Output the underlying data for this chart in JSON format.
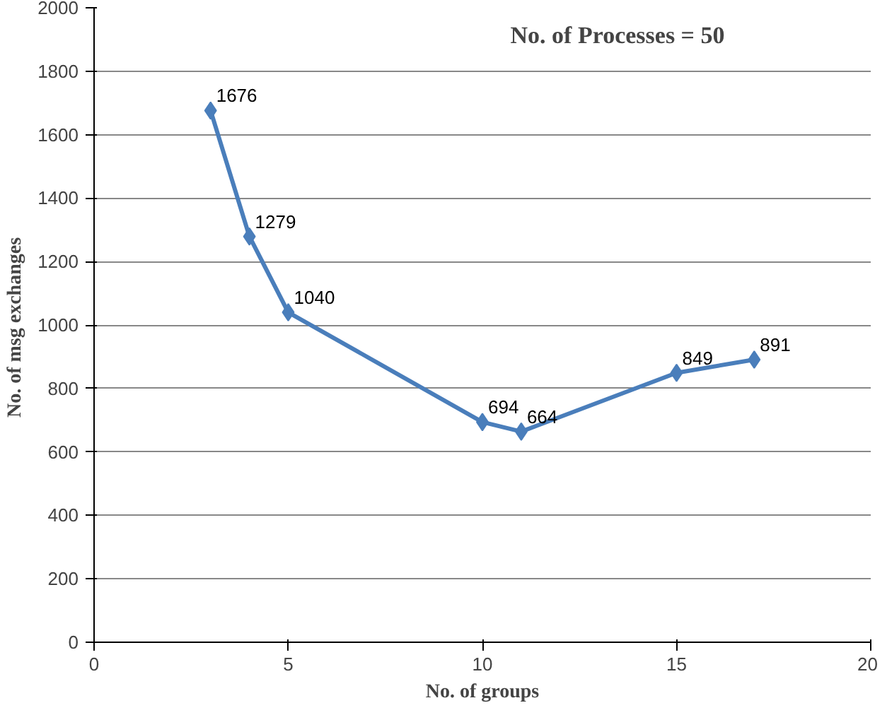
{
  "chart_data": {
    "type": "line",
    "xlabel": "No. of groups",
    "ylabel": "No. of msg  exchanges",
    "annotations": [
      "No. of Processes = 50"
    ],
    "x": [
      3,
      4,
      5,
      10,
      11,
      15,
      17
    ],
    "series": [
      {
        "color": "#4a7ebb",
        "values": [
          1676,
          1279,
          1040,
          694,
          664,
          849,
          891
        ]
      }
    ],
    "xlim": [
      0,
      20
    ],
    "xticks": [
      0,
      5,
      10,
      15,
      20
    ],
    "ylim": [
      0,
      2000
    ],
    "yticks": [
      0,
      200,
      400,
      600,
      800,
      1000,
      1200,
      1400,
      1600,
      1800,
      2000
    ],
    "grid": "y",
    "marker": "diamond",
    "line_style": "solid",
    "data_labels": true
  }
}
